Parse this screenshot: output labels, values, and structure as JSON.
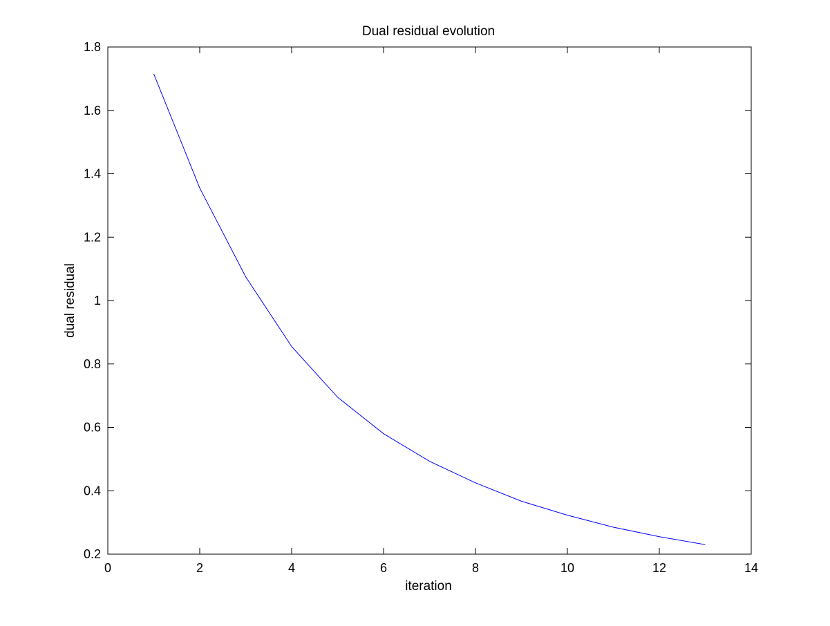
{
  "chart_data": {
    "type": "line",
    "title": "Dual residual evolution",
    "xlabel": "iteration",
    "ylabel": "dual residual",
    "xlim": [
      0,
      14
    ],
    "ylim": [
      0.2,
      1.8
    ],
    "xticks": [
      0,
      2,
      4,
      6,
      8,
      10,
      12,
      14
    ],
    "yticks": [
      0.2,
      0.4,
      0.6,
      0.8,
      1,
      1.2,
      1.4,
      1.6,
      1.8
    ],
    "xtick_labels": [
      "0",
      "2",
      "4",
      "6",
      "8",
      "10",
      "12",
      "14"
    ],
    "ytick_labels": [
      "0.2",
      "0.4",
      "0.6",
      "0.8",
      "1",
      "1.2",
      "1.4",
      "1.6",
      "1.8"
    ],
    "grid": false,
    "series": [
      {
        "color": "#0000ff",
        "x": [
          1,
          2,
          3,
          4,
          5,
          6,
          7,
          8,
          9,
          10,
          11,
          12,
          13
        ],
        "y": [
          1.715,
          1.355,
          1.075,
          0.855,
          0.695,
          0.58,
          0.493,
          0.425,
          0.367,
          0.323,
          0.285,
          0.255,
          0.23
        ]
      }
    ]
  }
}
